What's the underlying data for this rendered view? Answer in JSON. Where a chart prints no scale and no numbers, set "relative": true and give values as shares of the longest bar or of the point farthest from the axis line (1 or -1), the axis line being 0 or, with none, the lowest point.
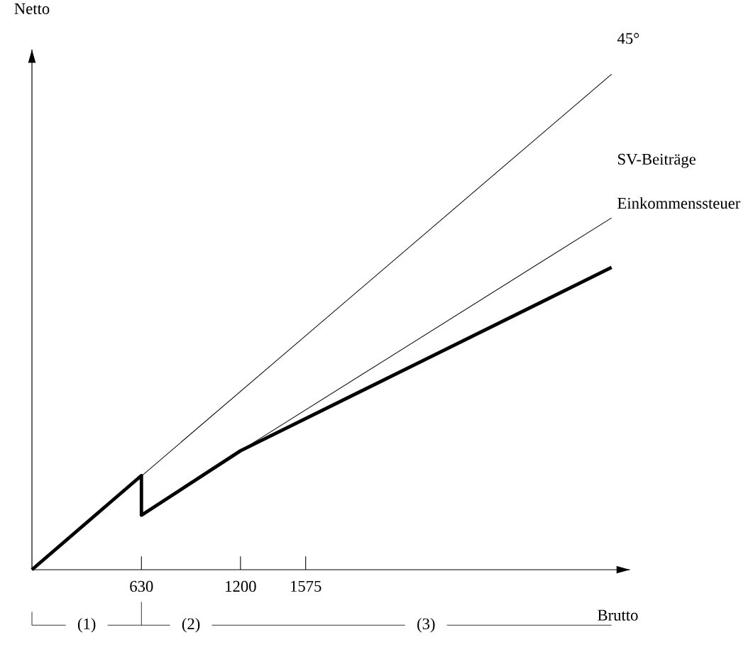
{
  "chart_data": {
    "type": "line",
    "relative": true,
    "xlabel": "Brutto",
    "ylabel": "Netto",
    "xlim": [
      0,
      3441
    ],
    "xticks": [
      630,
      1200,
      1575
    ],
    "series": [
      {
        "name": "45°",
        "x": [
          0,
          3335
        ],
        "values": [
          0,
          1
        ],
        "color": "#000000"
      },
      {
        "x": [
          1200,
          3335
        ],
        "values": [
          0.24,
          0.71
        ],
        "color": "#000000"
      },
      {
        "x": [
          0,
          630,
          630,
          1200,
          3335
        ],
        "values": [
          0,
          0.19,
          0.11,
          0.24,
          0.61
        ],
        "color": "#000000"
      }
    ],
    "annotations": [
      "SV-Beiträge",
      "Einkommenssteuer",
      "(1)",
      "(2)",
      "(3)"
    ],
    "grid": false,
    "marker": "none",
    "line_style": "solid"
  }
}
